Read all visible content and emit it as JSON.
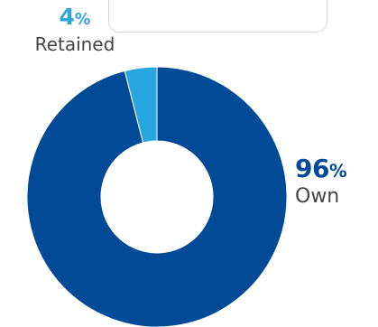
{
  "chart_data": {
    "type": "pie",
    "style": "donut",
    "series": [
      {
        "name": "Own",
        "value": 96,
        "value_label": "96",
        "unit": "%",
        "color": "#004a98"
      },
      {
        "name": "Retained",
        "value": 4,
        "value_label": "4",
        "unit": "%",
        "color": "#29a6df"
      }
    ],
    "labels": {
      "retained": {
        "value": "4",
        "unit": "%",
        "text": "Retained"
      },
      "own": {
        "value": "96",
        "unit": "%",
        "text": "Own"
      }
    }
  }
}
